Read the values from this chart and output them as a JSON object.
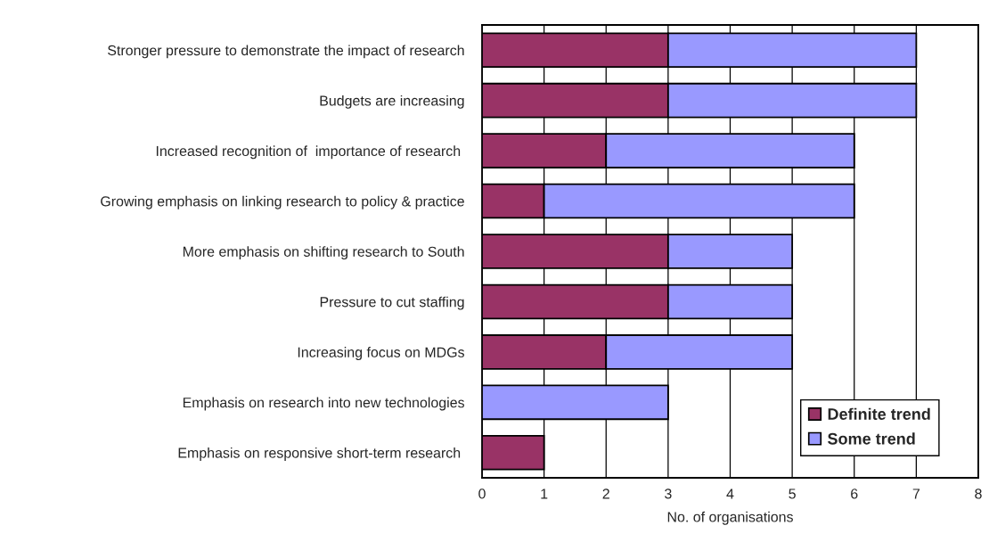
{
  "chart_data": {
    "type": "bar",
    "orientation": "horizontal",
    "stacked": true,
    "xlabel": "No. of organisations",
    "categories": [
      "Stronger pressure to demonstrate the impact of research",
      "Budgets are increasing",
      "Increased recognition of  importance of research ",
      "Growing emphasis on linking research to policy & practice",
      "More emphasis on shifting research to South",
      "Pressure to cut staffing",
      "Increasing focus on MDGs",
      "Emphasis on research into new technologies",
      "Emphasis on responsive short-term research "
    ],
    "series": [
      {
        "name": "Definite trend",
        "color": "#993366",
        "values": [
          3,
          3,
          2,
          1,
          3,
          3,
          2,
          0,
          1
        ]
      },
      {
        "name": "Some trend",
        "color": "#9999ff",
        "values": [
          4,
          4,
          4,
          5,
          2,
          2,
          3,
          3,
          0
        ]
      }
    ],
    "xlim": [
      0,
      8
    ],
    "xticks": [
      0,
      1,
      2,
      3,
      4,
      5,
      6,
      7,
      8
    ],
    "grid": "x",
    "legend": "bottom right"
  }
}
